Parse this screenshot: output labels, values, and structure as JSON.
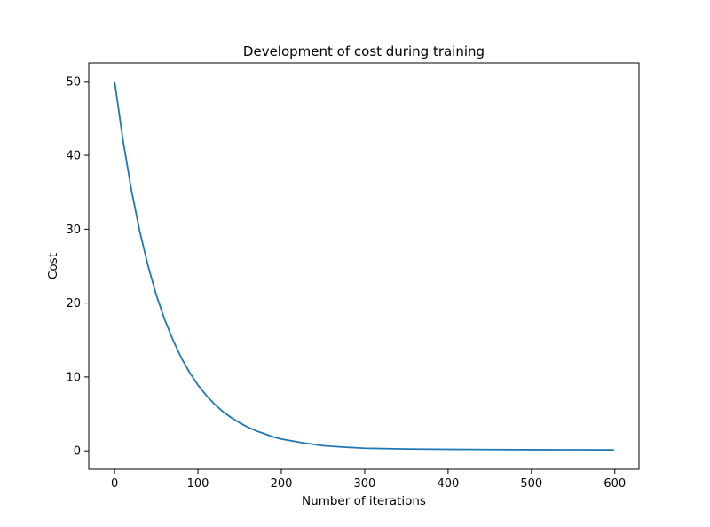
{
  "chart_data": {
    "type": "line",
    "title": "Development of cost during training",
    "xlabel": "Number of iterations",
    "ylabel": "Cost",
    "xlim": [
      -31,
      629
    ],
    "ylim": [
      -2.5,
      52.5
    ],
    "xticks": [
      0,
      100,
      200,
      300,
      400,
      500,
      600
    ],
    "yticks": [
      0,
      10,
      20,
      30,
      40,
      50
    ],
    "grid": false,
    "legend": "none",
    "series": [
      {
        "color": "#1f77b4",
        "x": [
          0,
          10,
          20,
          30,
          40,
          50,
          60,
          70,
          80,
          90,
          100,
          110,
          120,
          130,
          140,
          150,
          160,
          170,
          180,
          190,
          200,
          225,
          250,
          275,
          300,
          350,
          400,
          450,
          500,
          550,
          599
        ],
        "y": [
          50.0,
          42.1,
          35.4,
          29.8,
          25.1,
          21.1,
          17.8,
          15.0,
          12.6,
          10.6,
          8.9,
          7.5,
          6.3,
          5.3,
          4.5,
          3.8,
          3.2,
          2.7,
          2.3,
          1.9,
          1.6,
          1.1,
          0.7,
          0.5,
          0.35,
          0.25,
          0.2,
          0.17,
          0.15,
          0.14,
          0.13
        ]
      }
    ]
  }
}
